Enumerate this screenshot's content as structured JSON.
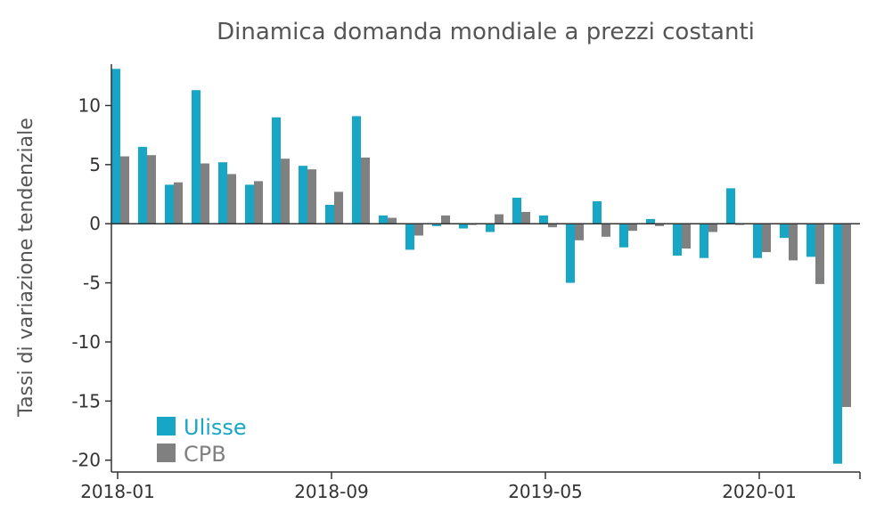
{
  "chart_data": {
    "type": "bar",
    "title": "Dinamica domanda mondiale a prezzi costanti",
    "xlabel": "",
    "ylabel": "Tassi di variazione tendenziale",
    "categories": [
      "2018-01",
      "2018-02",
      "2018-03",
      "2018-04",
      "2018-05",
      "2018-06",
      "2018-07",
      "2018-08",
      "2018-09",
      "2018-10",
      "2018-11",
      "2018-12",
      "2019-01",
      "2019-02",
      "2019-03",
      "2019-04",
      "2019-05",
      "2019-06",
      "2019-07",
      "2019-08",
      "2019-09",
      "2019-10",
      "2019-11",
      "2019-12",
      "2020-01",
      "2020-02",
      "2020-03",
      "2020-04"
    ],
    "x_tick_labels": [
      "2018-01",
      "2018-09",
      "2019-05",
      "2020-01"
    ],
    "x_tick_indices": [
      0,
      8,
      16,
      24
    ],
    "ylim": [
      -21,
      13.5
    ],
    "y_ticks": [
      10,
      5,
      0,
      -5,
      -10,
      -15,
      -20
    ],
    "series": [
      {
        "name": "Ulisse",
        "color": "#17a6c6",
        "values": [
          13.1,
          6.5,
          3.3,
          11.3,
          5.2,
          3.3,
          9.0,
          4.9,
          1.6,
          9.1,
          0.7,
          -2.2,
          -0.2,
          -0.4,
          -0.7,
          2.2,
          0.7,
          -5.0,
          1.9,
          -2.0,
          0.4,
          -2.7,
          -2.9,
          3.0,
          -2.9,
          -1.2,
          -2.8,
          -20.3
        ]
      },
      {
        "name": "CPB",
        "color": "#808080",
        "values": [
          5.7,
          5.8,
          3.5,
          5.1,
          4.2,
          3.6,
          5.5,
          4.6,
          2.7,
          5.6,
          0.5,
          -1.0,
          0.7,
          -0.1,
          0.8,
          1.0,
          -0.3,
          -1.4,
          -1.1,
          -0.6,
          -0.2,
          -2.1,
          -0.7,
          -0.1,
          -2.4,
          -3.1,
          -5.1,
          -15.5
        ]
      }
    ],
    "legend": "bottom-left",
    "grid": false
  }
}
